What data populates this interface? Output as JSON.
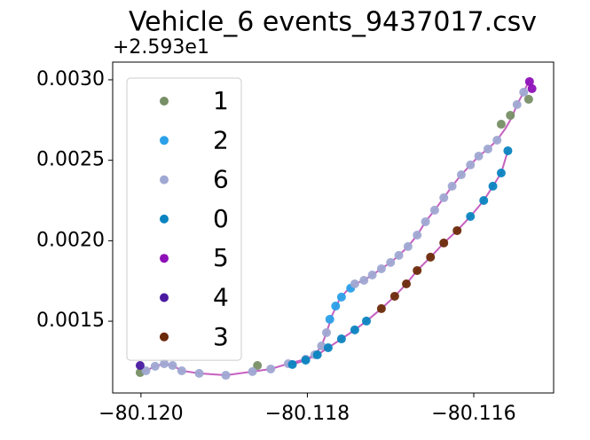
{
  "chart_data": {
    "type": "scatter",
    "title": "Vehicle_6 events_9437017.csv",
    "y_offset_text": "+2.593e1",
    "xlim": [
      -80.12034,
      -80.11504
    ],
    "ylim": [
      0.001054,
      0.00311
    ],
    "xticks": [
      {
        "value": -80.12,
        "label": "−80.120"
      },
      {
        "value": -80.118,
        "label": "−80.118"
      },
      {
        "value": -80.116,
        "label": "−80.116"
      }
    ],
    "yticks": [
      0.0015,
      {
        "value": 0.002,
        "label": "0.0020"
      },
      0.0025,
      {
        "value": 0.003,
        "label": "0.0030"
      }
    ],
    "legend": "upper left",
    "line": {
      "color": "#c560c0",
      "x": [
        -80.12001,
        -80.11994,
        -80.11983,
        -80.11972,
        -80.11962,
        -80.11951,
        -80.1193,
        -80.11898,
        -80.11866,
        -80.11844,
        -80.11823,
        -80.11802,
        -80.11791,
        -80.11783,
        -80.11777,
        -80.1177,
        -80.11761,
        -80.11751,
        -80.11743,
        -80.11732,
        -80.11722,
        -80.11711,
        -80.117,
        -80.1169,
        -80.11679,
        -80.11668,
        -80.11658,
        -80.11647,
        -80.11636,
        -80.11626,
        -80.11615,
        -80.11604,
        -80.11594,
        -80.11583,
        -80.11572,
        -80.11562,
        -80.11554,
        -80.11548,
        -80.1154,
        -80.11534,
        null,
        -80.11818,
        -80.11802,
        -80.11788,
        -80.11775,
        -80.11759,
        -80.11743,
        -80.11729,
        -80.11711,
        -80.11695,
        -80.11681,
        -80.11668,
        -80.11652,
        -80.11636,
        -80.1162,
        -80.11604,
        -80.11588,
        -80.11577,
        -80.11567,
        -80.11559
      ],
      "y": [
        0.001181,
        0.001192,
        0.00122,
        0.001236,
        0.001225,
        0.001192,
        0.001176,
        0.001164,
        0.001187,
        0.001203,
        0.001236,
        0.001264,
        0.001292,
        0.001346,
        0.001429,
        0.001539,
        0.001639,
        0.001699,
        0.001732,
        0.001754,
        0.001787,
        0.001826,
        0.001865,
        0.001909,
        0.001964,
        0.002035,
        0.002118,
        0.00219,
        0.002267,
        0.002339,
        0.00241,
        0.002471,
        0.002526,
        0.00257,
        0.002625,
        0.002697,
        0.002768,
        0.002846,
        0.002923,
        0.002989,
        null,
        0.001231,
        0.001258,
        0.001291,
        0.001335,
        0.00139,
        0.001446,
        0.001501,
        0.001578,
        0.001655,
        0.001732,
        0.001815,
        0.001898,
        0.001986,
        0.002063,
        0.002151,
        0.00225,
        0.002339,
        0.002421,
        0.002559
      ]
    },
    "series": [
      {
        "name": "1",
        "color": "#778f66",
        "x": [
          -80.12001,
          -80.1186,
          -80.11567,
          -80.11534,
          -80.11556
        ],
        "values": [
          0.001181,
          0.001225,
          0.002724,
          0.002879,
          0.002779
        ]
      },
      {
        "name": "2",
        "color": "#2aa0e8",
        "x": [
          -80.11773,
          -80.11766,
          -80.11759,
          -80.11748
        ],
        "values": [
          0.001512,
          0.001594,
          0.00165,
          0.001705
        ]
      },
      {
        "name": "6",
        "color": "#9fa8d2",
        "x": [
          -80.11994,
          -80.11983,
          -80.11972,
          -80.11962,
          -80.11951,
          -80.1193,
          -80.11898,
          -80.11866,
          -80.11844,
          -80.11823,
          -80.11802,
          -80.11791,
          -80.11783,
          -80.11777,
          -80.11743,
          -80.11732,
          -80.11722,
          -80.11711,
          -80.117,
          -80.1169,
          -80.11679,
          -80.11668,
          -80.11658,
          -80.11647,
          -80.11636,
          -80.11626,
          -80.11615,
          -80.11604,
          -80.11594,
          -80.11583,
          -80.11572,
          -80.11548,
          -80.1154
        ],
        "values": [
          0.001192,
          0.00122,
          0.001236,
          0.001225,
          0.001192,
          0.001176,
          0.001164,
          0.001187,
          0.001203,
          0.001236,
          0.001264,
          0.001292,
          0.001346,
          0.001429,
          0.001732,
          0.001754,
          0.001787,
          0.001826,
          0.001865,
          0.001909,
          0.001964,
          0.002035,
          0.002118,
          0.00219,
          0.002267,
          0.002339,
          0.00241,
          0.002471,
          0.002526,
          0.00257,
          0.002625,
          0.002846,
          0.002923
        ]
      },
      {
        "name": "0",
        "color": "#0a84c0",
        "x": [
          -80.11818,
          -80.11802,
          -80.11788,
          -80.11775,
          -80.11759,
          -80.11743,
          -80.11729,
          -80.11604,
          -80.11588,
          -80.11577,
          -80.11567,
          -80.11559
        ],
        "values": [
          0.001231,
          0.001258,
          0.001291,
          0.001335,
          0.00139,
          0.001446,
          0.001501,
          0.002151,
          0.00225,
          0.002339,
          0.002421,
          0.002559
        ]
      },
      {
        "name": "5",
        "color": "#8e10b8",
        "x": [
          -80.11533,
          -80.1153
        ],
        "values": [
          0.002989,
          0.002945
        ]
      },
      {
        "name": "4",
        "color": "#4a1aa0",
        "x": [
          -80.12001
        ],
        "values": [
          0.001225
        ]
      },
      {
        "name": "3",
        "color": "#6b2a0a",
        "x": [
          -80.11711,
          -80.11695,
          -80.11681,
          -80.11668,
          -80.11652,
          -80.11636,
          -80.1162
        ],
        "values": [
          0.001578,
          0.001655,
          0.001732,
          0.001815,
          0.001898,
          0.001986,
          0.002063
        ]
      }
    ]
  }
}
